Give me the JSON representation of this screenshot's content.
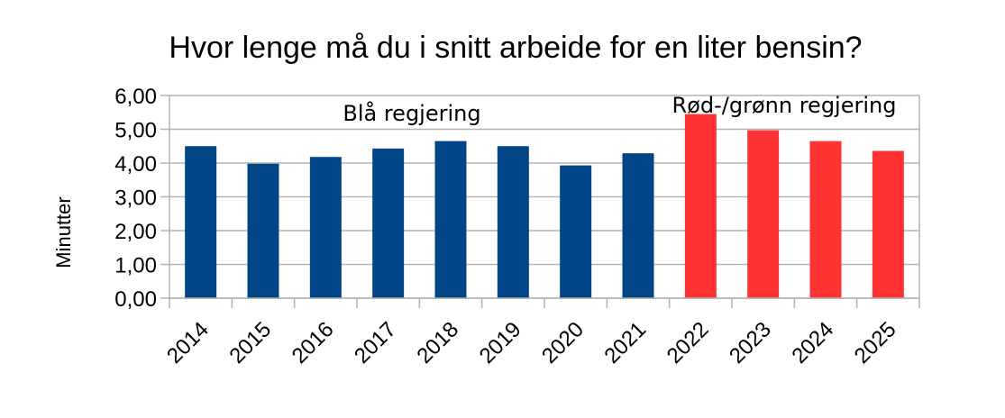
{
  "chart_data": {
    "type": "bar",
    "title": "Hvor lenge må du i snitt arbeide for en liter bensin?",
    "xlabel": "",
    "ylabel": "Minutter",
    "ylim": [
      0,
      6
    ],
    "yticks": [
      0,
      1,
      2,
      3,
      4,
      5,
      6
    ],
    "ytick_labels": [
      "0,00",
      "1,00",
      "2,00",
      "3,00",
      "4,00",
      "5,00",
      "6,00"
    ],
    "grid": true,
    "categories": [
      "2014",
      "2015",
      "2016",
      "2017",
      "2018",
      "2019",
      "2020",
      "2021",
      "2022",
      "2023",
      "2024",
      "2025"
    ],
    "values": [
      4.5,
      3.98,
      4.18,
      4.43,
      4.65,
      4.5,
      3.93,
      4.29,
      5.45,
      4.97,
      4.65,
      4.36
    ],
    "groups": [
      {
        "name": "Blå regjering",
        "color": "#004586",
        "categories": [
          "2014",
          "2015",
          "2016",
          "2017",
          "2018",
          "2019",
          "2020",
          "2021"
        ]
      },
      {
        "name": "Rød-/grønn regjering",
        "color": "#ff3333",
        "categories": [
          "2022",
          "2023",
          "2024",
          "2025"
        ]
      }
    ],
    "annotations": [
      "Blå regjering",
      "Rød-/grønn regjering"
    ]
  }
}
